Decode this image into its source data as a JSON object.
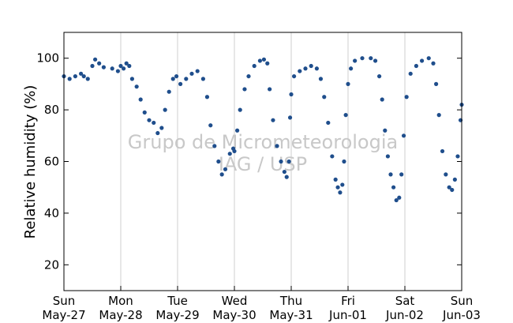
{
  "chart_data": {
    "type": "scatter",
    "title": "",
    "xlabel": "",
    "ylabel": "Relative humidity (%)",
    "watermark": [
      "Grupo de Micrometeorologia",
      "IAG / USP"
    ],
    "ylim": [
      10,
      110
    ],
    "yticks": [
      20,
      40,
      60,
      80,
      100
    ],
    "xlim": [
      0,
      7
    ],
    "x_unit": "days since Sun May-27 00:00",
    "xticks": [
      {
        "x": 0,
        "day": "Sun",
        "date": "May-27"
      },
      {
        "x": 1,
        "day": "Mon",
        "date": "May-28"
      },
      {
        "x": 2,
        "day": "Tue",
        "date": "May-29"
      },
      {
        "x": 3,
        "day": "Wed",
        "date": "May-30"
      },
      {
        "x": 4,
        "day": "Thu",
        "date": "May-31"
      },
      {
        "x": 5,
        "day": "Fri",
        "date": "Jun-01"
      },
      {
        "x": 6,
        "day": "Sat",
        "date": "Jun-02"
      },
      {
        "x": 7,
        "day": "Sun",
        "date": "Jun-03"
      }
    ],
    "grid": "vertical",
    "marker_color": "#1f4e8c",
    "series": [
      {
        "name": "",
        "points": [
          [
            0.0,
            93
          ],
          [
            0.1,
            92
          ],
          [
            0.2,
            93
          ],
          [
            0.3,
            94
          ],
          [
            0.35,
            93
          ],
          [
            0.42,
            92
          ],
          [
            0.5,
            97
          ],
          [
            0.55,
            99.5
          ],
          [
            0.62,
            98
          ],
          [
            0.7,
            96.5
          ],
          [
            0.85,
            96
          ],
          [
            0.95,
            95
          ],
          [
            1.0,
            97
          ],
          [
            1.05,
            96
          ],
          [
            1.1,
            98
          ],
          [
            1.15,
            97
          ],
          [
            1.2,
            92
          ],
          [
            1.28,
            89
          ],
          [
            1.35,
            84
          ],
          [
            1.42,
            79
          ],
          [
            1.5,
            76
          ],
          [
            1.58,
            75
          ],
          [
            1.65,
            71
          ],
          [
            1.72,
            73
          ],
          [
            1.78,
            80
          ],
          [
            1.85,
            87
          ],
          [
            1.92,
            92
          ],
          [
            1.98,
            93
          ],
          [
            2.05,
            90
          ],
          [
            2.15,
            92
          ],
          [
            2.25,
            94
          ],
          [
            2.35,
            95
          ],
          [
            2.45,
            92
          ],
          [
            2.52,
            85
          ],
          [
            2.58,
            74
          ],
          [
            2.65,
            66
          ],
          [
            2.72,
            60
          ],
          [
            2.78,
            55
          ],
          [
            2.84,
            57
          ],
          [
            2.92,
            63
          ],
          [
            2.98,
            65
          ],
          [
            3.0,
            64
          ],
          [
            3.05,
            72
          ],
          [
            3.1,
            80
          ],
          [
            3.18,
            88
          ],
          [
            3.25,
            93
          ],
          [
            3.35,
            97
          ],
          [
            3.45,
            99
          ],
          [
            3.52,
            99.5
          ],
          [
            3.58,
            98
          ],
          [
            3.62,
            88
          ],
          [
            3.68,
            76
          ],
          [
            3.75,
            66
          ],
          [
            3.82,
            60
          ],
          [
            3.88,
            56
          ],
          [
            3.92,
            54
          ],
          [
            3.96,
            60
          ],
          [
            3.98,
            77
          ],
          [
            4.0,
            86
          ],
          [
            4.05,
            93
          ],
          [
            4.15,
            95
          ],
          [
            4.25,
            96
          ],
          [
            4.35,
            97
          ],
          [
            4.45,
            96
          ],
          [
            4.52,
            92
          ],
          [
            4.58,
            85
          ],
          [
            4.65,
            75
          ],
          [
            4.72,
            62
          ],
          [
            4.78,
            53
          ],
          [
            4.82,
            50
          ],
          [
            4.86,
            48
          ],
          [
            4.9,
            51
          ],
          [
            4.93,
            60
          ],
          [
            4.96,
            78
          ],
          [
            5.0,
            90
          ],
          [
            5.05,
            96
          ],
          [
            5.12,
            99
          ],
          [
            5.25,
            100
          ],
          [
            5.4,
            100
          ],
          [
            5.48,
            99
          ],
          [
            5.55,
            93
          ],
          [
            5.6,
            84
          ],
          [
            5.65,
            72
          ],
          [
            5.7,
            62
          ],
          [
            5.75,
            55
          ],
          [
            5.8,
            50
          ],
          [
            5.85,
            45
          ],
          [
            5.9,
            46
          ],
          [
            5.94,
            55
          ],
          [
            5.98,
            70
          ],
          [
            6.03,
            85
          ],
          [
            6.1,
            94
          ],
          [
            6.2,
            97
          ],
          [
            6.3,
            99
          ],
          [
            6.42,
            100
          ],
          [
            6.5,
            98
          ],
          [
            6.55,
            90
          ],
          [
            6.6,
            78
          ],
          [
            6.66,
            64
          ],
          [
            6.72,
            55
          ],
          [
            6.78,
            50
          ],
          [
            6.83,
            49
          ],
          [
            6.88,
            53
          ],
          [
            6.93,
            62
          ],
          [
            6.98,
            76
          ],
          [
            7.0,
            82
          ]
        ]
      }
    ]
  }
}
